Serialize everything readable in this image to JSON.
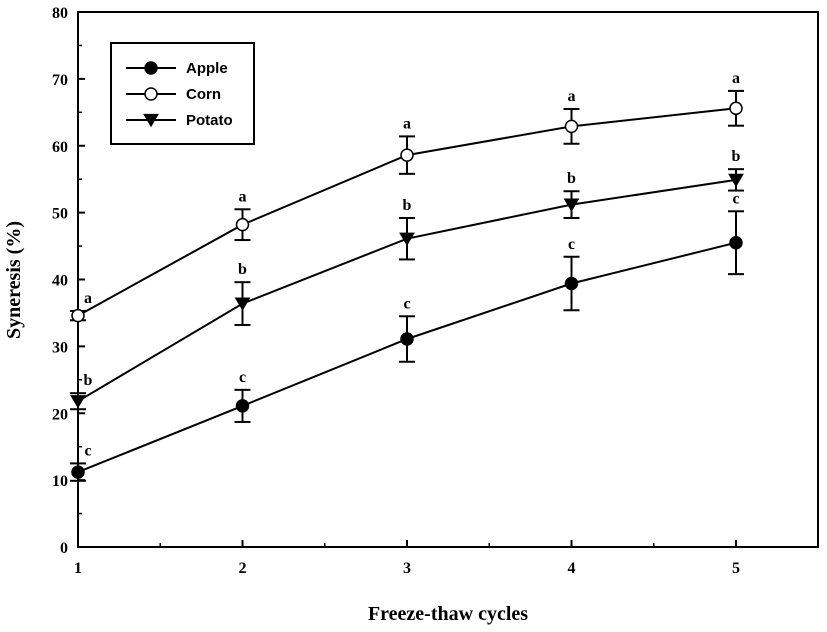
{
  "chart_data": {
    "type": "line",
    "xlabel": "Freeze-thaw cycles",
    "ylabel": "Syneresis (%)",
    "x": [
      1,
      2,
      3,
      4,
      5
    ],
    "xlim": [
      1,
      5.4
    ],
    "ylim": [
      0,
      80
    ],
    "xticks": [
      "1",
      "2",
      "3",
      "4",
      "5"
    ],
    "yticks": [
      "0",
      "10",
      "20",
      "30",
      "40",
      "50",
      "60",
      "70",
      "80"
    ],
    "legend_position": "top-left",
    "grid": false,
    "series": [
      {
        "name": "Apple",
        "marker": "filled-circle",
        "values": [
          11.2,
          21.1,
          31.1,
          39.4,
          45.5
        ],
        "errors": [
          1.3,
          2.4,
          3.4,
          4.0,
          4.7
        ],
        "labels": [
          "c",
          "c",
          "c",
          "c",
          "c"
        ]
      },
      {
        "name": "Corn",
        "marker": "open-circle",
        "values": [
          34.6,
          48.2,
          58.6,
          62.9,
          65.6
        ],
        "errors": [
          0.7,
          2.3,
          2.8,
          2.6,
          2.6
        ],
        "labels": [
          "a",
          "a",
          "a",
          "a",
          "a"
        ]
      },
      {
        "name": "Potato",
        "marker": "filled-triangle-down",
        "values": [
          21.8,
          36.4,
          46.1,
          51.2,
          54.9
        ],
        "errors": [
          1.2,
          3.2,
          3.1,
          2.0,
          1.6
        ],
        "labels": [
          "b",
          "b",
          "b",
          "b",
          "b"
        ]
      }
    ]
  }
}
